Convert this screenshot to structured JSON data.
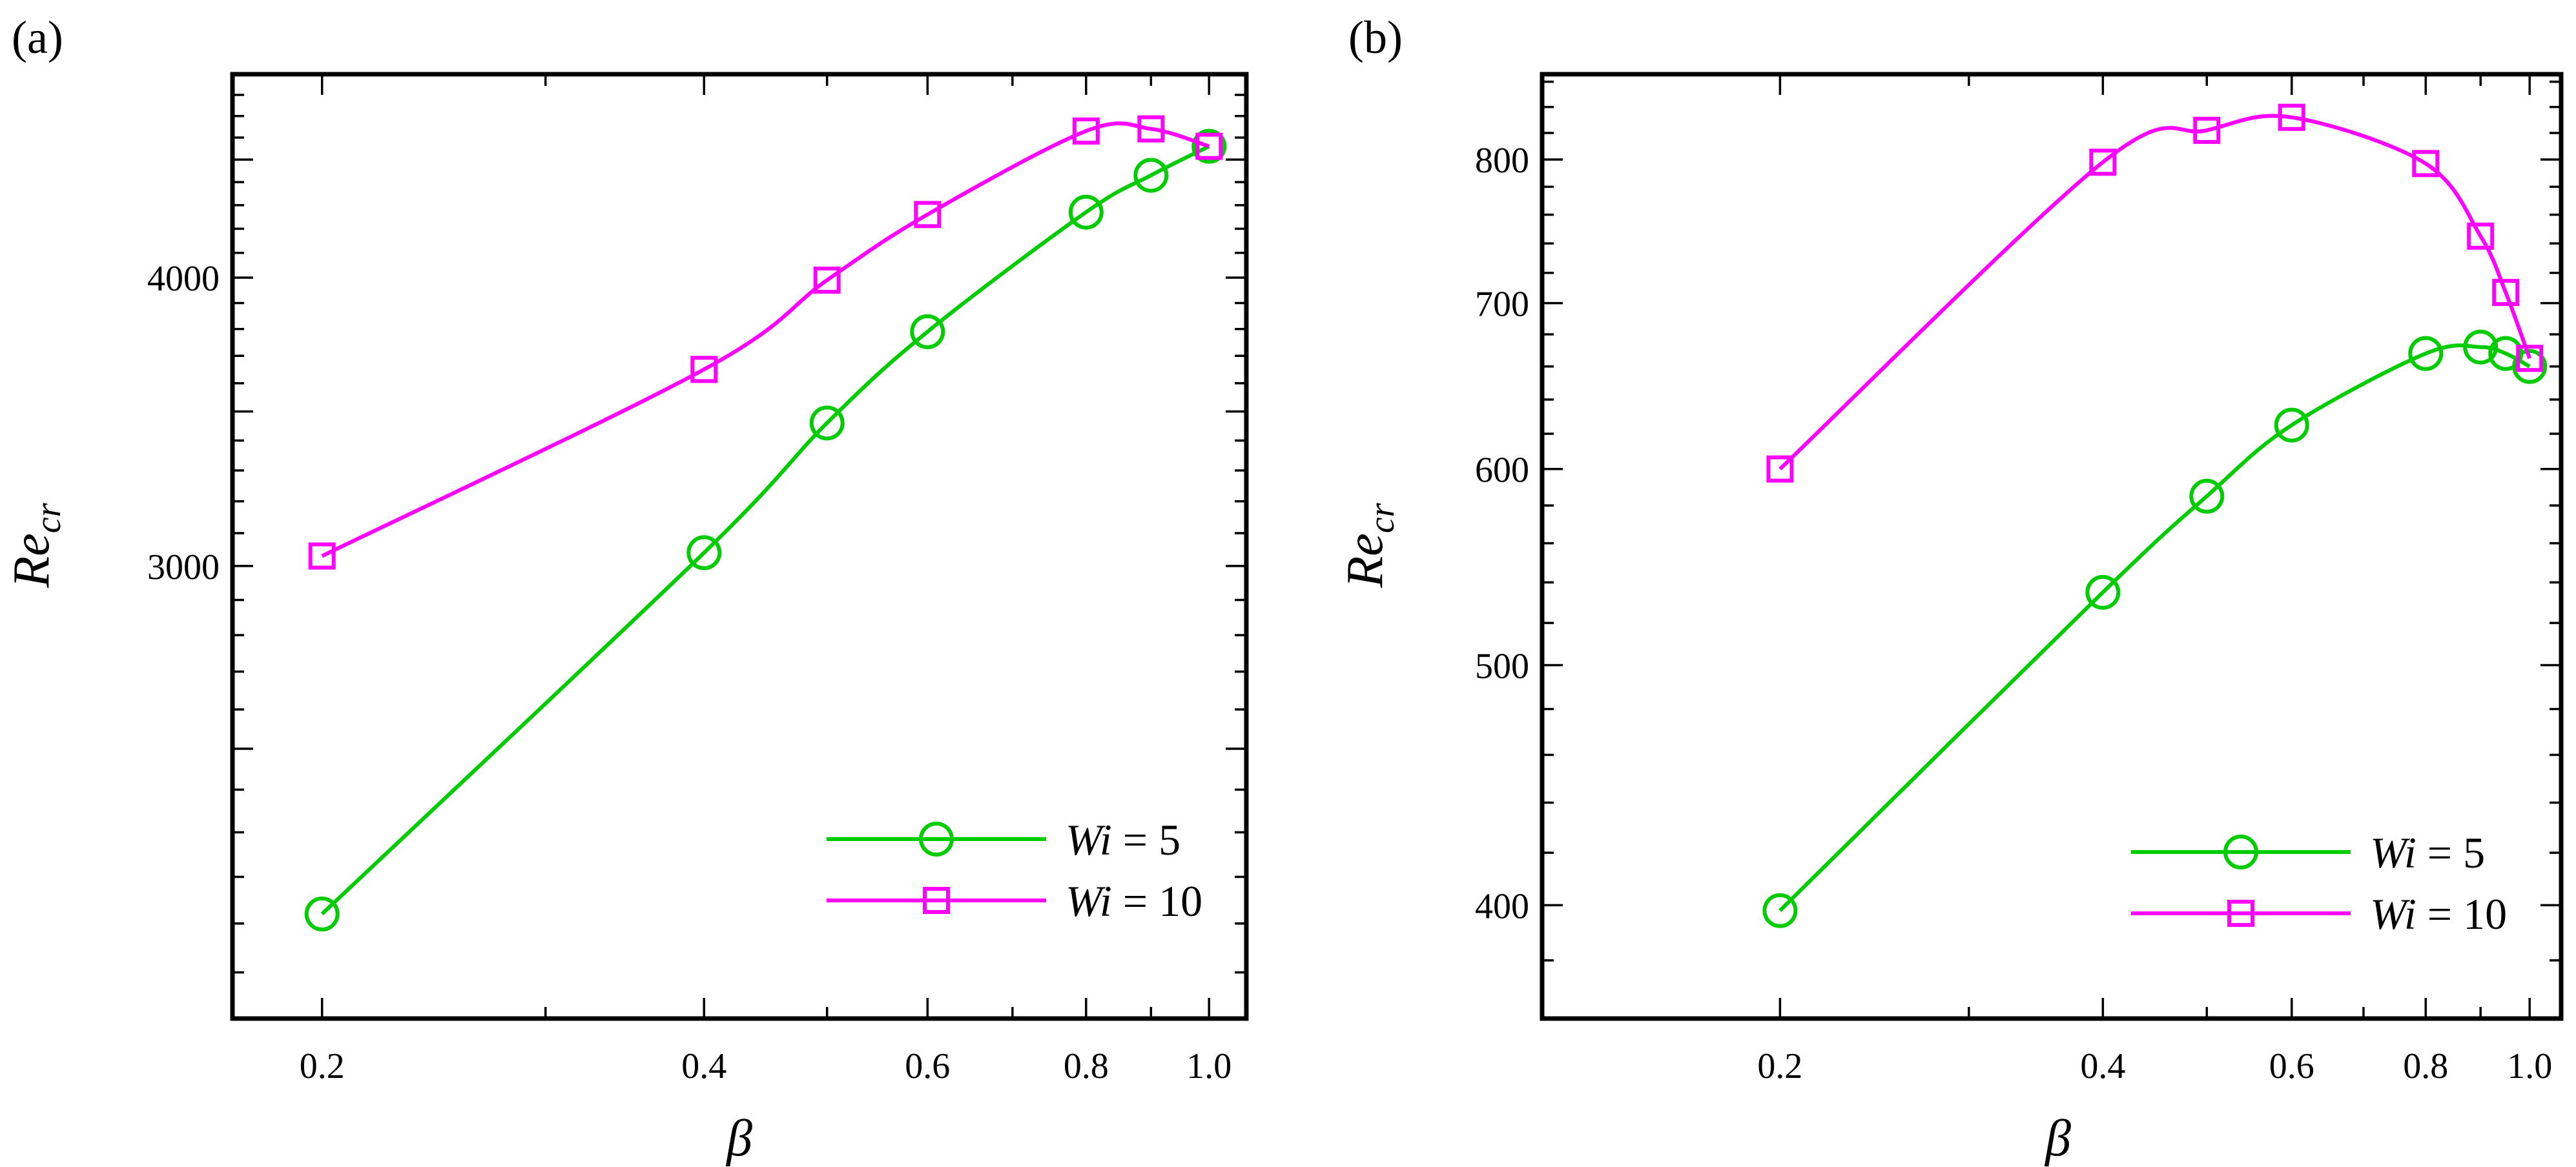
{
  "chart_data": [
    {
      "type": "line",
      "panel_label": "(a)",
      "xlabel": "β",
      "ylabel": "Re",
      "ylabel_sub": "cr",
      "x_scale": "log",
      "y_scale": "log",
      "xlim": [
        0.17,
        1.07
      ],
      "ylim": [
        1910,
        4900
      ],
      "x_ticks": [
        0.2,
        0.4,
        0.6,
        0.8,
        1.0
      ],
      "x_tick_labels": [
        "0.2",
        "0.4",
        "0.6",
        "0.8",
        "1.0"
      ],
      "y_ticks": [
        3000,
        4000
      ],
      "y_tick_labels": [
        "3000",
        "4000"
      ],
      "y_unlabeled_major_ticks": [
        2500,
        3500,
        4500
      ],
      "legend_position": "bottom-right",
      "series": [
        {
          "name": "Wi = 5",
          "name_parts": [
            "Wi",
            " = 5"
          ],
          "color": "#00cc00",
          "marker": "circle",
          "x": [
            0.2,
            0.4,
            0.5,
            0.6,
            0.8,
            0.9,
            1.0
          ],
          "y": [
            2120,
            3040,
            3460,
            3790,
            4270,
            4430,
            4560
          ]
        },
        {
          "name": "Wi = 10",
          "name_parts": [
            "Wi",
            " = 10"
          ],
          "color": "#ff00ff",
          "marker": "square",
          "x": [
            0.2,
            0.4,
            0.5,
            0.6,
            0.8,
            0.9,
            1.0
          ],
          "y": [
            3030,
            3650,
            3990,
            4260,
            4630,
            4640,
            4560
          ]
        }
      ]
    },
    {
      "type": "line",
      "panel_label": "(b)",
      "xlabel": "β",
      "ylabel": "Re",
      "ylabel_sub": "cr",
      "x_scale": "log",
      "y_scale": "log",
      "xlim": [
        0.12,
        1.07
      ],
      "ylim": [
        360,
        866
      ],
      "x_ticks": [
        0.2,
        0.4,
        0.6,
        0.8,
        1.0
      ],
      "x_tick_labels": [
        "0.2",
        "0.4",
        "0.6",
        "0.8",
        "1.0"
      ],
      "y_ticks": [
        400,
        500,
        600,
        700,
        800
      ],
      "y_tick_labels": [
        "400",
        "500",
        "600",
        "700",
        "800"
      ],
      "legend_position": "bottom-right",
      "series": [
        {
          "name": "Wi = 5",
          "name_parts": [
            "Wi",
            " = 5"
          ],
          "color": "#00cc00",
          "marker": "circle",
          "x": [
            0.2,
            0.4,
            0.5,
            0.6,
            0.8,
            0.9,
            0.95,
            1.0
          ],
          "y": [
            398,
            535,
            585,
            625,
            668,
            672,
            668,
            660
          ]
        },
        {
          "name": "Wi = 10",
          "name_parts": [
            "Wi",
            " = 10"
          ],
          "color": "#ff00ff",
          "marker": "square",
          "x": [
            0.2,
            0.4,
            0.5,
            0.6,
            0.8,
            0.9,
            0.95,
            1.0
          ],
          "y": [
            600,
            798,
            822,
            832,
            797,
            745,
            707,
            665
          ]
        }
      ]
    }
  ]
}
